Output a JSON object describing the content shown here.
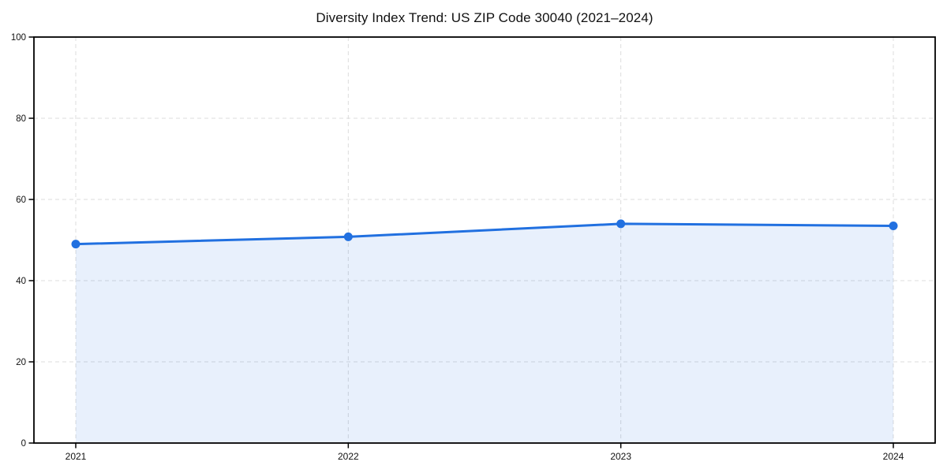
{
  "chart_data": {
    "type": "area",
    "title": "Diversity Index Trend: US ZIP Code 30040 (2021–2024)",
    "categories": [
      "2021",
      "2022",
      "2023",
      "2024"
    ],
    "values": [
      49,
      50.8,
      54,
      53.5
    ],
    "xlabel": "",
    "ylabel": "",
    "ylim": [
      0,
      100
    ],
    "y_ticks": [
      0,
      20,
      40,
      60,
      80,
      100
    ],
    "grid": true,
    "grid_style": "dashed",
    "legend": "none",
    "marker": "circle",
    "colors": {
      "line": "#2170e0",
      "marker": "#2170e0",
      "fill": "#2170e0",
      "fill_opacity": 0.1,
      "grid": "#dcdcdc",
      "spine": "#000000",
      "tick_text": "#111111",
      "title_text": "#111111",
      "background": "#ffffff"
    }
  }
}
